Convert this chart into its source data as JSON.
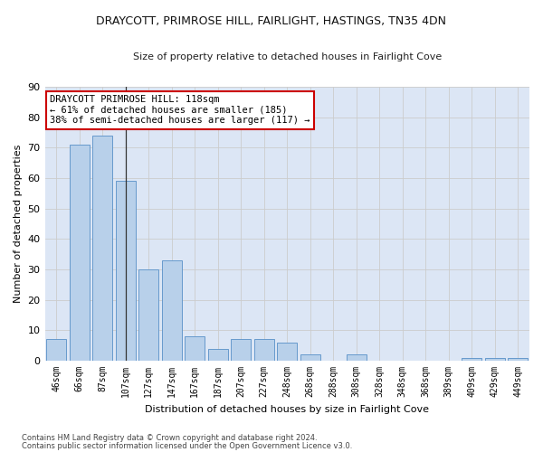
{
  "title": "DRAYCOTT, PRIMROSE HILL, FAIRLIGHT, HASTINGS, TN35 4DN",
  "subtitle": "Size of property relative to detached houses in Fairlight Cove",
  "xlabel": "Distribution of detached houses by size in Fairlight Cove",
  "ylabel": "Number of detached properties",
  "categories": [
    "46sqm",
    "66sqm",
    "87sqm",
    "107sqm",
    "127sqm",
    "147sqm",
    "167sqm",
    "187sqm",
    "207sqm",
    "227sqm",
    "248sqm",
    "268sqm",
    "288sqm",
    "308sqm",
    "328sqm",
    "348sqm",
    "368sqm",
    "389sqm",
    "409sqm",
    "429sqm",
    "449sqm"
  ],
  "values": [
    7,
    71,
    74,
    59,
    30,
    33,
    8,
    4,
    7,
    7,
    6,
    2,
    0,
    2,
    0,
    0,
    0,
    0,
    1,
    1,
    1
  ],
  "bar_color": "#b8d0ea",
  "bar_edge_color": "#6699cc",
  "highlight_index": 3,
  "highlight_line_color": "#333333",
  "annotation_text": "DRAYCOTT PRIMROSE HILL: 118sqm\n← 61% of detached houses are smaller (185)\n38% of semi-detached houses are larger (117) →",
  "annotation_box_color": "#ffffff",
  "annotation_box_edge_color": "#cc0000",
  "ylim": [
    0,
    90
  ],
  "yticks": [
    0,
    10,
    20,
    30,
    40,
    50,
    60,
    70,
    80,
    90
  ],
  "grid_color": "#cccccc",
  "bg_color": "#dce6f5",
  "fig_bg_color": "#ffffff",
  "footer1": "Contains HM Land Registry data © Crown copyright and database right 2024.",
  "footer2": "Contains public sector information licensed under the Open Government Licence v3.0."
}
